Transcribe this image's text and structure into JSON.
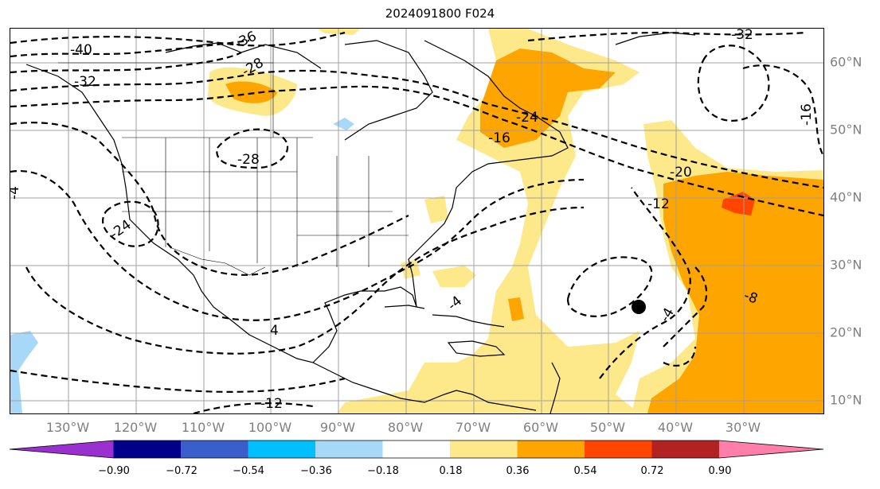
{
  "title": "2024091800 F024",
  "longitude_labels": [
    "130°W",
    "120°W",
    "110°W",
    "100°W",
    "90°W",
    "80°W",
    "70°W",
    "60°W",
    "50°W",
    "40°W",
    "30°W"
  ],
  "latitude_labels": [
    "60°N",
    "50°N",
    "40°N",
    "30°N",
    "20°N",
    "10°N"
  ],
  "contour_labels": [
    "-40",
    "-36",
    "-32",
    "-28",
    "-28",
    "-24",
    "-24",
    "-16",
    "-20",
    "-12",
    "-8",
    "-4",
    "-4",
    "4",
    "-12",
    "-32",
    "-16",
    "-4"
  ],
  "colorbar": {
    "ticks": [
      "−0.90",
      "−0.72",
      "−0.54",
      "−0.36",
      "−0.18",
      "0.18",
      "0.36",
      "0.54",
      "0.72",
      "0.90"
    ],
    "colors": [
      "#9b30d0",
      "#00008b",
      "#3a5fcd",
      "#00bfff",
      "#a8d8f8",
      "#ffffff",
      "#fde98a",
      "#ffa500",
      "#ff4500",
      "#b22222",
      "#ff7faa"
    ]
  },
  "colors": {
    "light_yellow": "#fde98a",
    "orange": "#ffa500",
    "red_orange": "#ff4500",
    "light_blue": "#a8d8f8"
  },
  "marker": "storm-center-dot"
}
